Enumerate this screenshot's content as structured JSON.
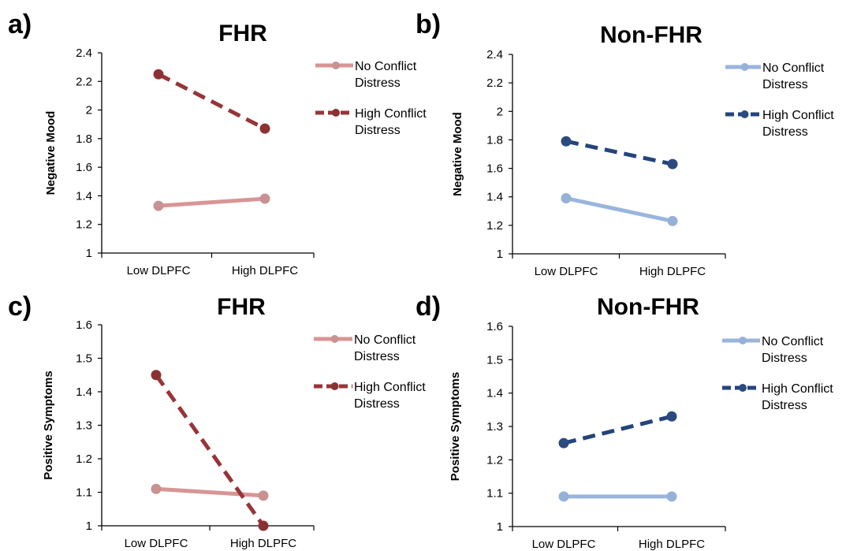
{
  "chart_data": [
    {
      "panel": "a)",
      "type": "line",
      "title": "FHR",
      "ylabel": "Negative Mood",
      "xlabel": "",
      "categories": [
        "Low DLPFC",
        "High DLPFC"
      ],
      "ylim": [
        1,
        2.4
      ],
      "yticks": [
        "1",
        "1.2",
        "1.4",
        "1.6",
        "1.8",
        "2",
        "2.2",
        "2.4"
      ],
      "grid": false,
      "legend_position": "right",
      "series": [
        {
          "name": [
            "No Conflict",
            "Distress"
          ],
          "values": [
            1.33,
            1.38
          ],
          "color": "#d89595",
          "marker_color": "#c99292",
          "dashed": false
        },
        {
          "name": [
            "High Conflict",
            "Distress"
          ],
          "values": [
            2.25,
            1.87
          ],
          "color": "#963537",
          "marker_color": "#8c3133",
          "dashed": true
        }
      ]
    },
    {
      "panel": "b)",
      "type": "line",
      "title": "Non-FHR",
      "ylabel": "Negative Mood",
      "xlabel": "",
      "categories": [
        "Low DLPFC",
        "High DLPFC"
      ],
      "ylim": [
        1,
        2.4
      ],
      "yticks": [
        "1",
        "1.2",
        "1.4",
        "1.6",
        "1.8",
        "2",
        "2.2",
        "2.4"
      ],
      "grid": false,
      "legend_position": "right",
      "series": [
        {
          "name": [
            "No Conflict",
            "Distress"
          ],
          "values": [
            1.39,
            1.23
          ],
          "color": "#9ab5dc",
          "marker_color": "#96b1d7",
          "dashed": false
        },
        {
          "name": [
            "High Conflict",
            "Distress"
          ],
          "values": [
            1.79,
            1.63
          ],
          "color": "#23447c",
          "marker_color": "#2b4a7f",
          "dashed": true
        }
      ]
    },
    {
      "panel": "c)",
      "type": "line",
      "title": "FHR",
      "ylabel": "Positive Symptoms",
      "xlabel": "",
      "categories": [
        "Low DLPFC",
        "High DLPFC"
      ],
      "ylim": [
        1,
        1.6
      ],
      "yticks": [
        "1",
        "1.1",
        "1.2",
        "1.3",
        "1.4",
        "1.5",
        "1.6"
      ],
      "grid": false,
      "legend_position": "right",
      "series": [
        {
          "name": [
            "No Conflict",
            "Distress"
          ],
          "values": [
            1.11,
            1.09
          ],
          "color": "#d89595",
          "marker_color": "#c99292",
          "dashed": false
        },
        {
          "name": [
            "High Conflict",
            "Distress"
          ],
          "values": [
            1.45,
            1.0
          ],
          "color": "#963537",
          "marker_color": "#8c3133",
          "dashed": true
        }
      ]
    },
    {
      "panel": "d)",
      "type": "line",
      "title": "Non-FHR",
      "ylabel": "Positive Symptoms",
      "xlabel": "",
      "categories": [
        "Low DLPFC",
        "High DLPFC"
      ],
      "ylim": [
        1,
        1.6
      ],
      "yticks": [
        "1",
        "1.1",
        "1.2",
        "1.3",
        "1.4",
        "1.5",
        "1.6"
      ],
      "grid": false,
      "legend_position": "right",
      "series": [
        {
          "name": [
            "No Conflict",
            "Distress"
          ],
          "values": [
            1.09,
            1.09
          ],
          "color": "#9ab5dc",
          "marker_color": "#96b1d7",
          "dashed": false
        },
        {
          "name": [
            "High Conflict",
            "Distress"
          ],
          "values": [
            1.25,
            1.33
          ],
          "color": "#23447c",
          "marker_color": "#2b4a7f",
          "dashed": true
        }
      ]
    }
  ]
}
